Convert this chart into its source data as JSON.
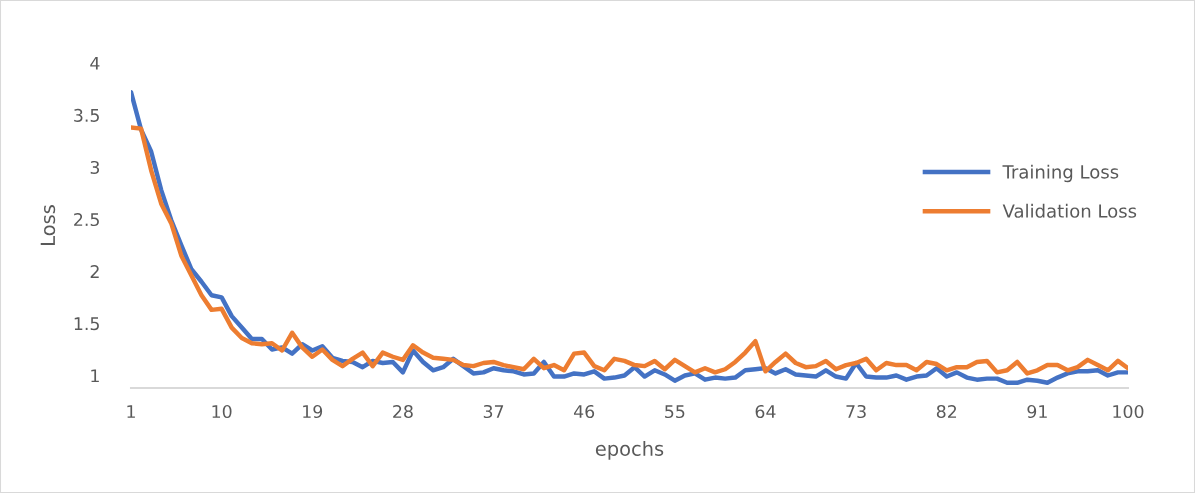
{
  "chart_data": {
    "type": "line",
    "xlabel": "epochs",
    "ylabel": "Loss",
    "x": [
      1,
      2,
      3,
      4,
      5,
      6,
      7,
      8,
      9,
      10,
      11,
      12,
      13,
      14,
      15,
      16,
      17,
      18,
      19,
      20,
      21,
      22,
      23,
      24,
      25,
      26,
      27,
      28,
      29,
      30,
      31,
      32,
      33,
      34,
      35,
      36,
      37,
      38,
      39,
      40,
      41,
      42,
      43,
      44,
      45,
      46,
      47,
      48,
      49,
      50,
      51,
      52,
      53,
      54,
      55,
      56,
      57,
      58,
      59,
      60,
      61,
      62,
      63,
      64,
      65,
      66,
      67,
      68,
      69,
      70,
      71,
      72,
      73,
      74,
      75,
      76,
      77,
      78,
      79,
      80,
      81,
      82,
      83,
      84,
      85,
      86,
      87,
      88,
      89,
      90,
      91,
      92,
      93,
      94,
      95,
      96,
      97,
      98,
      99,
      100
    ],
    "series": [
      {
        "name": "Training Loss",
        "color": "#4472c4",
        "values": [
          3.72,
          3.36,
          3.15,
          2.78,
          2.49,
          2.25,
          2.02,
          1.9,
          1.77,
          1.75,
          1.57,
          1.46,
          1.35,
          1.35,
          1.25,
          1.27,
          1.21,
          1.3,
          1.24,
          1.28,
          1.17,
          1.14,
          1.13,
          1.08,
          1.14,
          1.12,
          1.13,
          1.03,
          1.24,
          1.13,
          1.05,
          1.08,
          1.16,
          1.09,
          1.02,
          1.03,
          1.07,
          1.05,
          1.04,
          1.01,
          1.02,
          1.13,
          0.99,
          0.99,
          1.02,
          1.01,
          1.04,
          0.97,
          0.98,
          1.0,
          1.08,
          0.99,
          1.05,
          1.01,
          0.95,
          1.0,
          1.02,
          0.96,
          0.98,
          0.97,
          0.98,
          1.05,
          1.06,
          1.07,
          1.02,
          1.06,
          1.01,
          1.0,
          0.99,
          1.05,
          0.99,
          0.97,
          1.12,
          0.99,
          0.98,
          0.98,
          1.0,
          0.96,
          0.99,
          1.0,
          1.07,
          0.99,
          1.03,
          0.98,
          0.96,
          0.97,
          0.97,
          0.93,
          0.93,
          0.96,
          0.95,
          0.93,
          0.98,
          1.02,
          1.04,
          1.04,
          1.05,
          1.0,
          1.03,
          1.03
        ]
      },
      {
        "name": "Validation Loss",
        "color": "#ed7d31",
        "values": [
          3.38,
          3.37,
          2.97,
          2.65,
          2.46,
          2.15,
          1.96,
          1.77,
          1.63,
          1.64,
          1.46,
          1.36,
          1.31,
          1.3,
          1.31,
          1.24,
          1.41,
          1.27,
          1.18,
          1.25,
          1.15,
          1.09,
          1.16,
          1.22,
          1.09,
          1.22,
          1.18,
          1.15,
          1.29,
          1.22,
          1.17,
          1.16,
          1.15,
          1.1,
          1.09,
          1.12,
          1.13,
          1.1,
          1.08,
          1.06,
          1.16,
          1.07,
          1.1,
          1.05,
          1.21,
          1.22,
          1.09,
          1.05,
          1.16,
          1.14,
          1.1,
          1.09,
          1.14,
          1.06,
          1.15,
          1.09,
          1.03,
          1.07,
          1.03,
          1.06,
          1.13,
          1.22,
          1.33,
          1.04,
          1.13,
          1.21,
          1.12,
          1.08,
          1.09,
          1.14,
          1.06,
          1.1,
          1.12,
          1.16,
          1.05,
          1.12,
          1.1,
          1.1,
          1.05,
          1.13,
          1.11,
          1.05,
          1.08,
          1.08,
          1.13,
          1.14,
          1.03,
          1.05,
          1.13,
          1.02,
          1.05,
          1.1,
          1.1,
          1.05,
          1.08,
          1.15,
          1.1,
          1.05,
          1.14,
          1.07
        ]
      }
    ],
    "xlim": [
      1,
      100
    ],
    "xticks": [
      1,
      10,
      19,
      28,
      37,
      46,
      55,
      64,
      73,
      82,
      91,
      100
    ],
    "ylim": [
      0.88,
      4
    ],
    "yticks": [
      1,
      1.5,
      2,
      2.5,
      3,
      3.5,
      4
    ],
    "grid": false,
    "legend": "right",
    "marker": "none",
    "line_style": "solid"
  }
}
